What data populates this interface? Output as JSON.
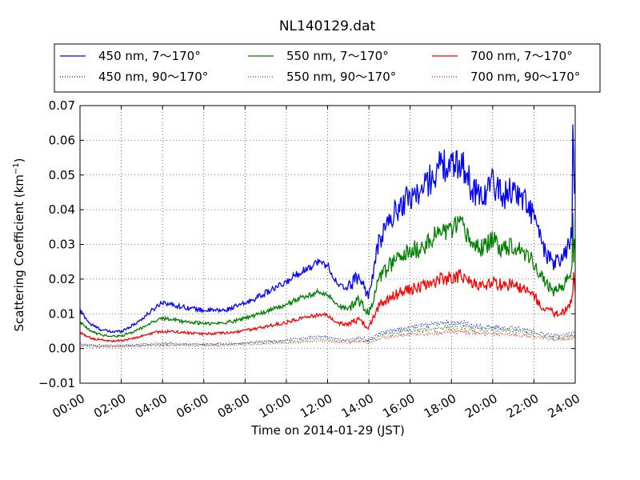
{
  "chart_data": {
    "type": "line",
    "title": "NL140129.dat",
    "xlabel": "Time on 2014-01-29 (JST)",
    "ylabel": "Scattering Coefficient (km",
    "ylabel_sup": "−1",
    "ylabel_close": ")",
    "xlim": [
      0,
      24
    ],
    "ylim": [
      -0.01,
      0.07
    ],
    "x_ticks": [
      0,
      2,
      4,
      6,
      8,
      10,
      12,
      14,
      16,
      18,
      20,
      22,
      24
    ],
    "x_tick_labels": [
      "00:00",
      "02:00",
      "04:00",
      "06:00",
      "08:00",
      "10:00",
      "12:00",
      "14:00",
      "16:00",
      "18:00",
      "20:00",
      "22:00",
      "24:00"
    ],
    "y_ticks": [
      -0.01,
      0.0,
      0.01,
      0.02,
      0.03,
      0.04,
      0.05,
      0.06,
      0.07
    ],
    "y_tick_labels": [
      "−0.01",
      "0.00",
      "0.01",
      "0.02",
      "0.03",
      "0.04",
      "0.05",
      "0.06",
      "0.07"
    ],
    "grid": true,
    "legend_position": "top",
    "x_hours": [
      0,
      0.5,
      1,
      1.5,
      2,
      2.5,
      3,
      3.5,
      4,
      4.5,
      5,
      5.5,
      6,
      6.5,
      7,
      7.5,
      8,
      8.5,
      9,
      9.5,
      10,
      10.5,
      11,
      11.5,
      12,
      12.5,
      13,
      13.5,
      14,
      14.5,
      15,
      15.5,
      16,
      16.5,
      17,
      17.5,
      18,
      18.5,
      19,
      19.5,
      20,
      20.5,
      21,
      21.5,
      22,
      22.5,
      23,
      23.5,
      24
    ],
    "series": [
      {
        "name": "450 nm, 7～170°",
        "color": "#0000ff",
        "style": "solid",
        "values": [
          0.011,
          0.007,
          0.0055,
          0.0048,
          0.005,
          0.0065,
          0.0085,
          0.011,
          0.0135,
          0.0125,
          0.012,
          0.0115,
          0.011,
          0.011,
          0.011,
          0.012,
          0.013,
          0.0145,
          0.016,
          0.0175,
          0.019,
          0.0215,
          0.023,
          0.025,
          0.024,
          0.018,
          0.0175,
          0.021,
          0.015,
          0.031,
          0.037,
          0.041,
          0.044,
          0.045,
          0.049,
          0.053,
          0.052,
          0.054,
          0.046,
          0.044,
          0.048,
          0.044,
          0.046,
          0.043,
          0.038,
          0.028,
          0.024,
          0.027,
          0.036
        ]
      },
      {
        "name": "550 nm, 7～170°",
        "color": "#008000",
        "style": "solid",
        "values": [
          0.0075,
          0.005,
          0.004,
          0.0035,
          0.0036,
          0.0046,
          0.006,
          0.0076,
          0.0087,
          0.0083,
          0.0078,
          0.0075,
          0.0072,
          0.0072,
          0.0074,
          0.008,
          0.0088,
          0.0096,
          0.0106,
          0.0116,
          0.0126,
          0.0142,
          0.015,
          0.0162,
          0.0158,
          0.012,
          0.0115,
          0.0138,
          0.01,
          0.02,
          0.024,
          0.026,
          0.028,
          0.029,
          0.031,
          0.034,
          0.034,
          0.0355,
          0.03,
          0.029,
          0.031,
          0.029,
          0.03,
          0.028,
          0.025,
          0.019,
          0.0165,
          0.0185,
          0.024
        ]
      },
      {
        "name": "700 nm, 7～170°",
        "color": "#ff0000",
        "style": "solid",
        "values": [
          0.0045,
          0.003,
          0.0025,
          0.0022,
          0.0023,
          0.0028,
          0.0036,
          0.0044,
          0.005,
          0.0048,
          0.0046,
          0.0044,
          0.0042,
          0.0043,
          0.0044,
          0.0047,
          0.0052,
          0.0057,
          0.0063,
          0.0069,
          0.0075,
          0.0085,
          0.009,
          0.0097,
          0.0095,
          0.0072,
          0.007,
          0.0083,
          0.006,
          0.0125,
          0.0145,
          0.016,
          0.017,
          0.0175,
          0.0188,
          0.02,
          0.0205,
          0.021,
          0.0185,
          0.018,
          0.0195,
          0.018,
          0.0185,
          0.017,
          0.015,
          0.0115,
          0.01,
          0.011,
          0.015
        ]
      },
      {
        "name": "450 nm, 90～170°",
        "color": "#0000ff",
        "style": "dotted",
        "values": [
          0.0015,
          0.001,
          0.001,
          0.0009,
          0.0009,
          0.001,
          0.0012,
          0.0014,
          0.0015,
          0.0015,
          0.0014,
          0.0014,
          0.0013,
          0.0013,
          0.0014,
          0.0015,
          0.0017,
          0.0019,
          0.0021,
          0.0023,
          0.0025,
          0.0028,
          0.0031,
          0.0034,
          0.0033,
          0.0026,
          0.0026,
          0.0032,
          0.0025,
          0.0043,
          0.005,
          0.0056,
          0.006,
          0.0063,
          0.0068,
          0.0072,
          0.0075,
          0.0076,
          0.0067,
          0.0063,
          0.0065,
          0.006,
          0.006,
          0.0055,
          0.005,
          0.004,
          0.0035,
          0.0038,
          0.0048
        ]
      },
      {
        "name": "550 nm, 90～170°",
        "color": "#008000",
        "style": "dotted",
        "values": [
          0.0011,
          0.0008,
          0.0007,
          0.0007,
          0.0007,
          0.0008,
          0.0009,
          0.0011,
          0.0012,
          0.0012,
          0.0011,
          0.0011,
          0.0011,
          0.0011,
          0.0012,
          0.0013,
          0.0014,
          0.0016,
          0.0018,
          0.0019,
          0.0021,
          0.0023,
          0.0026,
          0.0028,
          0.0027,
          0.0022,
          0.0022,
          0.0027,
          0.0021,
          0.0036,
          0.0042,
          0.0047,
          0.005,
          0.0052,
          0.0056,
          0.006,
          0.0062,
          0.0063,
          0.0056,
          0.0053,
          0.0055,
          0.005,
          0.005,
          0.0046,
          0.0042,
          0.0034,
          0.003,
          0.0032,
          0.004
        ]
      },
      {
        "name": "700 nm, 90～170°",
        "color": "#ff0000",
        "style": "dotted",
        "values": [
          0.0008,
          0.0006,
          0.0005,
          0.0005,
          0.0005,
          0.0006,
          0.0007,
          0.0008,
          0.0009,
          0.0009,
          0.0009,
          0.0009,
          0.0008,
          0.0009,
          0.0009,
          0.001,
          0.0011,
          0.0012,
          0.0014,
          0.0015,
          0.0016,
          0.0018,
          0.002,
          0.0022,
          0.0021,
          0.0017,
          0.0017,
          0.0021,
          0.0017,
          0.0028,
          0.0033,
          0.0037,
          0.0039,
          0.0041,
          0.0044,
          0.0046,
          0.0048,
          0.0049,
          0.0044,
          0.0042,
          0.0043,
          0.004,
          0.004,
          0.0037,
          0.0034,
          0.0028,
          0.0025,
          0.0027,
          0.0032
        ]
      }
    ]
  }
}
